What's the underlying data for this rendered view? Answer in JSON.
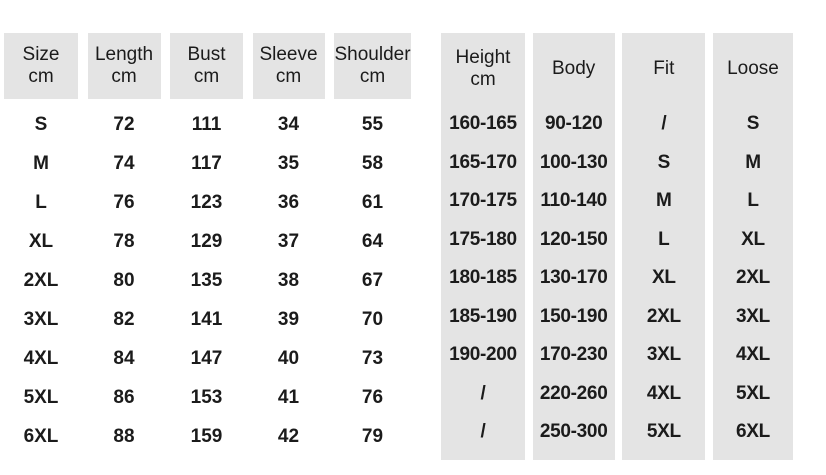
{
  "page": {
    "background": "#ffffff",
    "cell_background": "#e4e4e4",
    "text_color": "#1b1b1b"
  },
  "left_table": {
    "headers": [
      {
        "label": "Size",
        "unit": "cm"
      },
      {
        "label": "Length",
        "unit": "cm"
      },
      {
        "label": "Bust",
        "unit": "cm"
      },
      {
        "label": "Sleeve",
        "unit": "cm"
      },
      {
        "label": "Shoulder",
        "unit": "cm"
      }
    ],
    "rows": [
      [
        "S",
        "72",
        "111",
        "34",
        "55"
      ],
      [
        "M",
        "74",
        "117",
        "35",
        "58"
      ],
      [
        "L",
        "76",
        "123",
        "36",
        "61"
      ],
      [
        "XL",
        "78",
        "129",
        "37",
        "64"
      ],
      [
        "2XL",
        "80",
        "135",
        "38",
        "67"
      ],
      [
        "3XL",
        "82",
        "141",
        "39",
        "70"
      ],
      [
        "4XL",
        "84",
        "147",
        "40",
        "73"
      ],
      [
        "5XL",
        "86",
        "153",
        "41",
        "76"
      ],
      [
        "6XL",
        "88",
        "159",
        "42",
        "79"
      ]
    ]
  },
  "right_table": {
    "headers": [
      {
        "label": "Height",
        "unit": "cm"
      },
      {
        "label": "Body",
        "unit": ""
      },
      {
        "label": "Fit",
        "unit": ""
      },
      {
        "label": "Loose",
        "unit": ""
      }
    ],
    "rows": [
      [
        "160-165",
        "90-120",
        "/",
        "S"
      ],
      [
        "165-170",
        "100-130",
        "S",
        "M"
      ],
      [
        "170-175",
        "110-140",
        "M",
        "L"
      ],
      [
        "175-180",
        "120-150",
        "L",
        "XL"
      ],
      [
        "180-185",
        "130-170",
        "XL",
        "2XL"
      ],
      [
        "185-190",
        "150-190",
        "2XL",
        "3XL"
      ],
      [
        "190-200",
        "170-230",
        "3XL",
        "4XL"
      ],
      [
        "/",
        "220-260",
        "4XL",
        "5XL"
      ],
      [
        "/",
        "250-300",
        "5XL",
        "6XL"
      ]
    ]
  }
}
